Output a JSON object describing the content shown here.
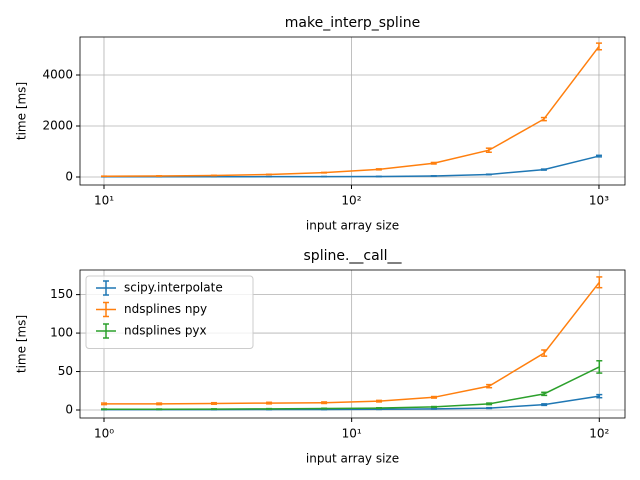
{
  "chart_data": [
    {
      "type": "line",
      "title": "make_interp_spline",
      "xlabel": "input array size",
      "ylabel": "time [ms]",
      "xscale": "log",
      "grid": true,
      "x": [
        10,
        16.7,
        27.8,
        46.4,
        77.4,
        129,
        215,
        359,
        599,
        1000
      ],
      "xlim": [
        8,
        1274
      ],
      "xticks": [
        {
          "value": 10,
          "label": "10¹"
        },
        {
          "value": 100,
          "label": "10²"
        },
        {
          "value": 1000,
          "label": "10³"
        }
      ],
      "ylim": [
        -314,
        5490
      ],
      "yticks": [
        0,
        2000,
        4000
      ],
      "series": [
        {
          "color": "#1f77b4",
          "values": [
            10,
            10,
            10,
            12,
            15,
            20,
            40,
            100,
            290,
            820
          ],
          "errors": [
            2,
            2,
            2,
            2,
            3,
            4,
            6,
            10,
            20,
            30
          ]
        },
        {
          "color": "#ff7f0e",
          "values": [
            30,
            40,
            60,
            100,
            170,
            300,
            540,
            1050,
            2270,
            5120
          ],
          "errors": [
            3,
            4,
            5,
            6,
            10,
            20,
            30,
            80,
            60,
            130
          ]
        }
      ]
    },
    {
      "type": "line",
      "title": "spline.__call__",
      "xlabel": "input array size",
      "ylabel": "time [ms]",
      "xscale": "log",
      "grid": true,
      "legend": "upper left",
      "x": [
        1,
        1.67,
        2.78,
        4.64,
        7.74,
        12.9,
        21.5,
        35.9,
        59.9,
        100
      ],
      "xlim": [
        0.8,
        127
      ],
      "xticks": [
        {
          "value": 1,
          "label": "10⁰"
        },
        {
          "value": 10,
          "label": "10¹"
        },
        {
          "value": 100,
          "label": "10²"
        }
      ],
      "ylim": [
        -10.4,
        182
      ],
      "yticks": [
        0,
        50,
        100,
        150
      ],
      "series": [
        {
          "name": "scipy.interpolate",
          "color": "#1f77b4",
          "values": [
            0.5,
            0.5,
            0.5,
            0.6,
            0.7,
            1,
            1.5,
            2.5,
            7,
            18
          ],
          "errors": [
            0.2,
            0.2,
            0.2,
            0.2,
            0.2,
            0.3,
            0.3,
            0.5,
            1,
            2
          ]
        },
        {
          "name": "ndsplines npy",
          "color": "#ff7f0e",
          "values": [
            8,
            8,
            8.5,
            9,
            9.5,
            11.5,
            16.5,
            31,
            74,
            166
          ],
          "errors": [
            1,
            1,
            1,
            1,
            1,
            1,
            1,
            2,
            4,
            7
          ]
        },
        {
          "name": "ndsplines pyx",
          "color": "#2ca02c",
          "values": [
            1,
            1,
            1.2,
            1.5,
            2,
            2.5,
            4,
            8,
            21,
            56
          ],
          "errors": [
            0.3,
            0.3,
            0.3,
            0.3,
            0.3,
            0.4,
            0.5,
            1,
            2,
            8
          ]
        }
      ]
    }
  ]
}
